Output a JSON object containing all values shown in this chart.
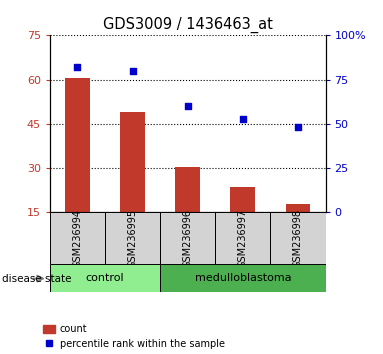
{
  "title": "GDS3009 / 1436463_at",
  "samples": [
    "GSM236994",
    "GSM236995",
    "GSM236996",
    "GSM236997",
    "GSM236998"
  ],
  "bar_values": [
    60.5,
    49.0,
    30.5,
    23.5,
    18.0
  ],
  "bar_baseline": 15,
  "percentile_values": [
    82,
    80,
    60,
    53,
    48
  ],
  "ylim_left": [
    15,
    75
  ],
  "ylim_right": [
    0,
    100
  ],
  "yticks_left": [
    15,
    30,
    45,
    60,
    75
  ],
  "yticks_right": [
    0,
    25,
    50,
    75,
    100
  ],
  "ytick_labels_right": [
    "0",
    "25",
    "50",
    "75",
    "100%"
  ],
  "bar_color": "#c0392b",
  "point_color": "#0000cc",
  "control_color": "#90ee90",
  "medulloblastoma_color": "#4caf50",
  "label_area_bg": "#d3d3d3",
  "legend_bar_label": "count",
  "legend_point_label": "percentile rank within the sample",
  "group_label": "disease state",
  "fig_width": 3.83,
  "fig_height": 3.54,
  "dpi": 100
}
